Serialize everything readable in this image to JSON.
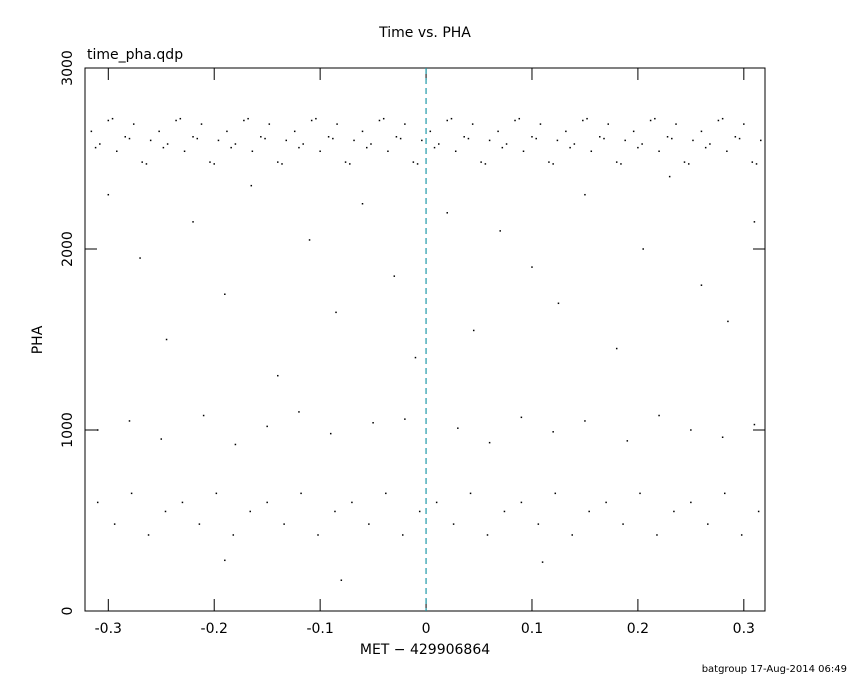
{
  "chart_data": {
    "type": "scatter",
    "title": "Time vs. PHA",
    "subtitle": "time_pha.qdp",
    "x_label": "MET − 429906864",
    "y_label": "PHA",
    "footer": "batgroup 17-Aug-2014 06:49",
    "color": "#000000",
    "xlim": [
      -0.322,
      0.32
    ],
    "ylim": [
      0,
      3000
    ],
    "xticks": [
      -0.3,
      -0.2,
      -0.1,
      0,
      0.1,
      0.2,
      0.3
    ],
    "yticks": [
      0,
      1000,
      2000,
      3000
    ],
    "vline": {
      "x": 0,
      "color": "#1f9aa8"
    },
    "x": [
      -0.316,
      -0.308,
      -0.3,
      -0.292,
      -0.284,
      -0.276,
      -0.268,
      -0.26,
      -0.252,
      -0.244,
      -0.236,
      -0.228,
      -0.22,
      -0.212,
      -0.204,
      -0.196,
      -0.188,
      -0.18,
      -0.172,
      -0.164,
      -0.156,
      -0.148,
      -0.14,
      -0.132,
      -0.124,
      -0.116,
      -0.108,
      -0.1,
      -0.092,
      -0.084,
      -0.076,
      -0.068,
      -0.06,
      -0.052,
      -0.044,
      -0.036,
      -0.028,
      -0.02,
      -0.012,
      -0.004,
      0.004,
      0.012,
      0.02,
      0.028,
      0.036,
      0.044,
      0.052,
      0.06,
      0.068,
      0.076,
      0.084,
      0.092,
      0.1,
      0.108,
      0.116,
      0.124,
      0.132,
      0.14,
      0.148,
      0.156,
      0.164,
      0.172,
      0.18,
      0.188,
      0.196,
      0.204,
      0.212,
      0.22,
      0.228,
      0.236,
      0.244,
      0.252,
      0.26,
      0.268,
      0.276,
      0.284,
      0.292,
      0.3,
      0.308,
      0.316,
      -0.312,
      -0.296,
      -0.28,
      -0.264,
      -0.248,
      -0.232,
      -0.216,
      -0.2,
      -0.184,
      -0.168,
      -0.152,
      -0.136,
      -0.12,
      -0.104,
      -0.088,
      -0.072,
      -0.056,
      -0.04,
      -0.024,
      -0.008,
      0.008,
      0.024,
      0.04,
      0.056,
      0.072,
      0.088,
      0.104,
      0.12,
      0.136,
      0.152,
      0.168,
      0.184,
      0.2,
      0.216,
      0.232,
      0.248,
      0.264,
      0.28,
      0.296,
      0.312,
      -0.3,
      -0.27,
      -0.245,
      -0.22,
      -0.19,
      -0.165,
      -0.14,
      -0.11,
      -0.085,
      -0.06,
      -0.03,
      -0.01,
      0.02,
      0.045,
      0.07,
      0.1,
      0.125,
      0.15,
      0.18,
      0.205,
      0.23,
      0.26,
      0.285,
      0.31,
      -0.31,
      -0.28,
      -0.25,
      -0.21,
      -0.18,
      -0.15,
      -0.12,
      -0.09,
      -0.05,
      -0.02,
      0.03,
      0.06,
      0.09,
      0.12,
      0.15,
      0.19,
      0.22,
      0.25,
      0.28,
      0.31,
      -0.31,
      -0.294,
      -0.278,
      -0.262,
      -0.246,
      -0.23,
      -0.214,
      -0.198,
      -0.182,
      -0.166,
      -0.15,
      -0.134,
      -0.118,
      -0.102,
      -0.086,
      -0.07,
      -0.054,
      -0.038,
      -0.022,
      -0.006,
      0.01,
      0.026,
      0.042,
      0.058,
      0.074,
      0.09,
      0.106,
      0.122,
      0.138,
      0.154,
      0.17,
      0.186,
      0.202,
      0.218,
      0.234,
      0.25,
      0.266,
      0.282,
      0.298,
      0.314,
      -0.08,
      0.11,
      -0.19
    ],
    "values": [
      2650,
      2580,
      2710,
      2540,
      2620,
      2690,
      2480,
      2600,
      2650,
      2580,
      2710,
      2540,
      2620,
      2690,
      2480,
      2600,
      2650,
      2580,
      2710,
      2540,
      2620,
      2690,
      2480,
      2600,
      2650,
      2580,
      2710,
      2540,
      2620,
      2690,
      2480,
      2600,
      2650,
      2580,
      2710,
      2540,
      2620,
      2690,
      2480,
      2600,
      2650,
      2580,
      2710,
      2540,
      2620,
      2690,
      2480,
      2600,
      2650,
      2580,
      2710,
      2540,
      2620,
      2690,
      2480,
      2600,
      2650,
      2580,
      2710,
      2540,
      2620,
      2690,
      2480,
      2600,
      2650,
      2580,
      2710,
      2540,
      2620,
      2690,
      2480,
      2600,
      2650,
      2580,
      2710,
      2540,
      2620,
      2690,
      2480,
      2600,
      2560,
      2720,
      2610,
      2470,
      2560,
      2720,
      2610,
      2470,
      2560,
      2720,
      2610,
      2470,
      2560,
      2720,
      2610,
      2470,
      2560,
      2720,
      2610,
      2470,
      2560,
      2720,
      2610,
      2470,
      2560,
      2720,
      2610,
      2470,
      2560,
      2720,
      2610,
      2470,
      2560,
      2720,
      2610,
      2470,
      2560,
      2720,
      2610,
      2470,
      2300,
      1950,
      1500,
      2150,
      1750,
      2350,
      1300,
      2050,
      1650,
      2250,
      1850,
      1400,
      2200,
      1550,
      2100,
      1900,
      1700,
      2300,
      1450,
      2000,
      2400,
      1800,
      1600,
      2150,
      1000,
      1050,
      950,
      1080,
      920,
      1020,
      1100,
      980,
      1040,
      1060,
      1010,
      930,
      1070,
      990,
      1050,
      940,
      1080,
      1000,
      960,
      1030,
      600,
      480,
      650,
      420,
      550,
      600,
      480,
      650,
      420,
      550,
      600,
      480,
      650,
      420,
      550,
      600,
      480,
      650,
      420,
      550,
      600,
      480,
      650,
      420,
      550,
      600,
      480,
      650,
      420,
      550,
      600,
      480,
      650,
      420,
      550,
      600,
      480,
      650,
      420,
      550,
      170,
      270,
      280
    ]
  }
}
